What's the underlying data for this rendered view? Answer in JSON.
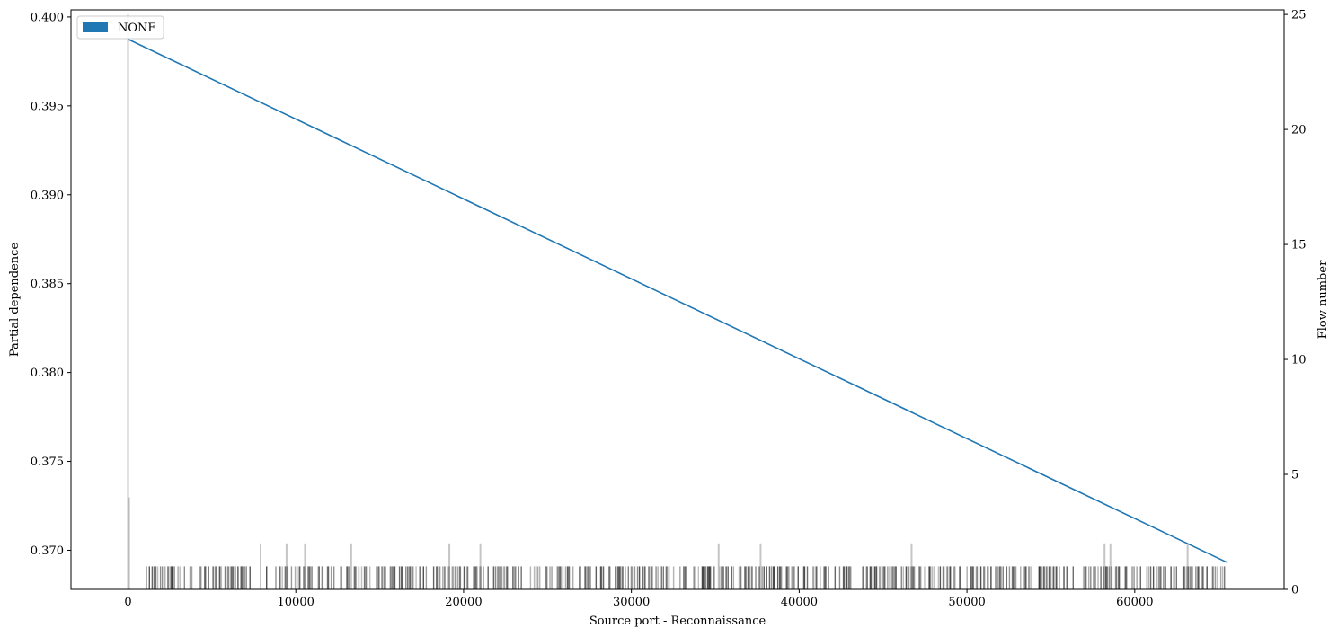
{
  "chart_data": {
    "type": "line",
    "xlabel": "Source port - Reconnaissance",
    "ylabel": "Partial dependence",
    "y2label": "Flow number",
    "xlim": [
      -3400,
      68900
    ],
    "ylim": [
      0.3678,
      0.4004
    ],
    "y2lim": [
      0,
      25.2
    ],
    "x_ticks": [
      0,
      10000,
      20000,
      30000,
      40000,
      50000,
      60000
    ],
    "x_tick_labels": [
      "0",
      "10000",
      "20000",
      "30000",
      "40000",
      "50000",
      "60000"
    ],
    "y_ticks": [
      0.37,
      0.375,
      0.38,
      0.385,
      0.39,
      0.395,
      0.4
    ],
    "y_tick_labels": [
      "0.370",
      "0.375",
      "0.380",
      "0.385",
      "0.390",
      "0.395",
      "0.400"
    ],
    "y2_ticks": [
      0,
      5,
      10,
      15,
      20,
      25
    ],
    "y2_tick_labels": [
      "0",
      "5",
      "10",
      "15",
      "20",
      "25"
    ],
    "legend": {
      "label": "NONE",
      "color": "#1f77b4",
      "position": "upper-left"
    },
    "series": [
      {
        "name": "NONE",
        "color": "#1f77b4",
        "x": [
          0,
          65535
        ],
        "y": [
          0.39875,
          0.3693
        ]
      }
    ],
    "histogram": {
      "axis": "right",
      "bar_color": "#9e9e9e",
      "tall_bars": [
        {
          "x": 0,
          "count": 25
        },
        {
          "x": 60,
          "count": 4
        },
        {
          "x": 7900,
          "count": 2
        },
        {
          "x": 9450,
          "count": 2
        },
        {
          "x": 10550,
          "count": 2
        },
        {
          "x": 13300,
          "count": 2
        },
        {
          "x": 19150,
          "count": 2
        },
        {
          "x": 21000,
          "count": 2
        },
        {
          "x": 35200,
          "count": 2
        },
        {
          "x": 37700,
          "count": 2
        },
        {
          "x": 46700,
          "count": 2
        },
        {
          "x": 58200,
          "count": 2
        },
        {
          "x": 58550,
          "count": 2
        },
        {
          "x": 63150,
          "count": 2
        }
      ],
      "dense_range": [
        1000,
        65500
      ],
      "dense_count": 1
    }
  }
}
